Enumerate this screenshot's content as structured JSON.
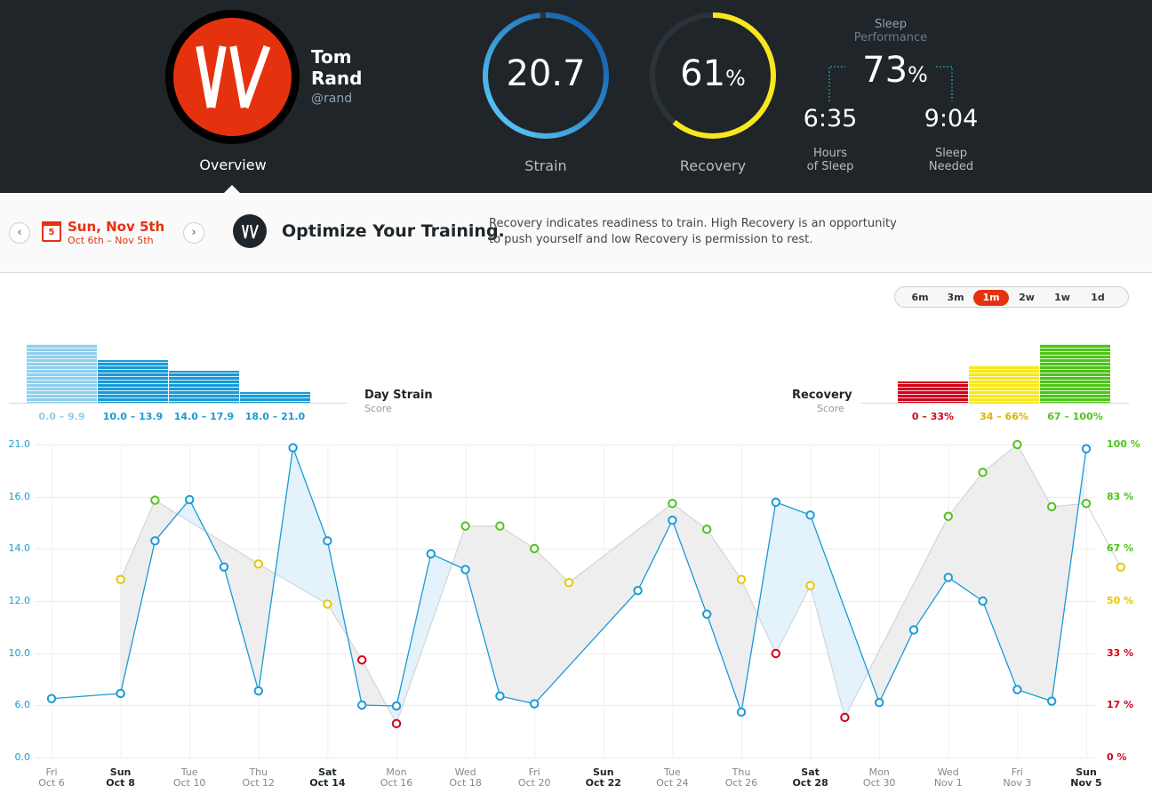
{
  "header": {
    "user": {
      "first_name": "Tom",
      "last_name": "Rand",
      "handle": "@rand"
    },
    "nav_label": "Overview",
    "strain": {
      "value": "20.7",
      "label": "Strain",
      "max": 21.0,
      "fraction": 0.985
    },
    "recovery": {
      "value": "61",
      "unit": "%",
      "label": "Recovery",
      "fraction": 0.61
    },
    "sleep": {
      "title_1": "Sleep",
      "title_2": "Performance",
      "value": "73",
      "unit": "%",
      "hours_of_sleep": "6:35",
      "hours_label_1": "Hours",
      "hours_label_2": "of Sleep",
      "needed": "9:04",
      "needed_label_1": "Sleep",
      "needed_label_2": "Needed"
    }
  },
  "subbar": {
    "prev_icon": "chevron-left-icon",
    "next_icon": "chevron-right-icon",
    "calendar_day": "5",
    "date": "Sun, Nov 5th",
    "range": "Oct 6th – Nov 5th",
    "title": "Optimize Your Training.",
    "description": "Recovery indicates readiness to train. High Recovery is an opportunity to push yourself and low Recovery is permission to rest."
  },
  "range_selector": {
    "options": [
      "6m",
      "3m",
      "1m",
      "2w",
      "1w",
      "1d"
    ],
    "selected": "1m"
  },
  "histograms": {
    "strain": {
      "title": "Day Strain",
      "subtitle": "Score",
      "bins": [
        {
          "label": "0.0 – 9.9",
          "value": 11,
          "color": "#8fd0ef"
        },
        {
          "label": "10.0 – 13.9",
          "value": 8,
          "color": "#1a9ad6"
        },
        {
          "label": "14.0 – 17.9",
          "value": 6,
          "color": "#1a9ad6"
        },
        {
          "label": "18.0 – 21.0",
          "value": 2,
          "color": "#1a9ad6"
        }
      ]
    },
    "recovery": {
      "title": "Recovery",
      "subtitle": "Score",
      "bins": [
        {
          "label": "0 – 33%",
          "value": 4,
          "color": "#d0021b"
        },
        {
          "label": "34 – 66%",
          "value": 7,
          "color": "#f8e71c"
        },
        {
          "label": "67 – 100%",
          "value": 11,
          "color": "#4ec31a"
        }
      ]
    }
  },
  "chart_data": {
    "type": "line",
    "left_axis": {
      "label": "",
      "ticks": [
        "21.0",
        "16.0",
        "14.0",
        "12.0",
        "10.0",
        "6.0",
        "0.0"
      ],
      "color": "#1a9ad6"
    },
    "right_axis": {
      "label": "",
      "ticks": [
        {
          "label": "100 %",
          "color": "#4ec31a"
        },
        {
          "label": "83 %",
          "color": "#4ec31a"
        },
        {
          "label": "67 %",
          "color": "#4ec31a"
        },
        {
          "label": "50 %",
          "color": "#e5c800"
        },
        {
          "label": "33 %",
          "color": "#d0021b"
        },
        {
          "label": "17 %",
          "color": "#d0021b"
        },
        {
          "label": "0 %",
          "color": "#d0021b"
        }
      ]
    },
    "x_labels": [
      {
        "day": "Fri",
        "date": "Oct 6",
        "bold": false
      },
      {
        "day": "Sun",
        "date": "Oct 8",
        "bold": true
      },
      {
        "day": "Tue",
        "date": "Oct 10",
        "bold": false
      },
      {
        "day": "Thu",
        "date": "Oct 12",
        "bold": false
      },
      {
        "day": "Sat",
        "date": "Oct 14",
        "bold": true
      },
      {
        "day": "Mon",
        "date": "Oct 16",
        "bold": false
      },
      {
        "day": "Wed",
        "date": "Oct 18",
        "bold": false
      },
      {
        "day": "Fri",
        "date": "Oct 20",
        "bold": false
      },
      {
        "day": "Sun",
        "date": "Oct 22",
        "bold": true
      },
      {
        "day": "Tue",
        "date": "Oct 24",
        "bold": false
      },
      {
        "day": "Thu",
        "date": "Oct 26",
        "bold": false
      },
      {
        "day": "Sat",
        "date": "Oct 28",
        "bold": true
      },
      {
        "day": "Mon",
        "date": "Oct 30",
        "bold": false
      },
      {
        "day": "Wed",
        "date": "Nov 1",
        "bold": false
      },
      {
        "day": "Fri",
        "date": "Nov 3",
        "bold": false
      },
      {
        "day": "Sun",
        "date": "Nov 5",
        "bold": true
      }
    ],
    "series": [
      {
        "name": "Strain",
        "color": "#1a9ad6",
        "points": [
          [
            0,
            6.5
          ],
          [
            2,
            6.9
          ],
          [
            3,
            14.3
          ],
          [
            4,
            15.9
          ],
          [
            5,
            13.3
          ],
          [
            6,
            7.1
          ],
          [
            7,
            20.7
          ],
          [
            8,
            14.3
          ],
          [
            9,
            6.0
          ],
          [
            10,
            5.9
          ],
          [
            11,
            13.8
          ],
          [
            12,
            13.2
          ],
          [
            13,
            6.7
          ],
          [
            14,
            6.1
          ],
          [
            17,
            12.4
          ],
          [
            18,
            15.1
          ],
          [
            19,
            11.5
          ],
          [
            20,
            5.2
          ],
          [
            21,
            15.8
          ],
          [
            22,
            15.3
          ],
          [
            24,
            6.2
          ],
          [
            25,
            10.9
          ],
          [
            26,
            12.9
          ],
          [
            27,
            12.0
          ],
          [
            28,
            7.2
          ],
          [
            29,
            6.3
          ],
          [
            30,
            20.6
          ]
        ]
      },
      {
        "name": "Recovery",
        "points": [
          [
            2,
            57,
            "#e5c800"
          ],
          [
            3,
            82,
            "#4ec31a"
          ],
          [
            6,
            62,
            "#e5c800"
          ],
          [
            8,
            49,
            "#e5c800"
          ],
          [
            9,
            31,
            "#d0021b"
          ],
          [
            10,
            11,
            "#d0021b"
          ],
          [
            12,
            74,
            "#4ec31a"
          ],
          [
            13,
            74,
            "#4ec31a"
          ],
          [
            14,
            67,
            "#4ec31a"
          ],
          [
            15,
            56,
            "#e5c800"
          ],
          [
            18,
            81,
            "#4ec31a"
          ],
          [
            19,
            73,
            "#4ec31a"
          ],
          [
            20,
            57,
            "#e5c800"
          ],
          [
            21,
            33,
            "#d0021b"
          ],
          [
            22,
            55,
            "#e5c800"
          ],
          [
            23,
            13,
            "#d0021b"
          ],
          [
            26,
            77,
            "#4ec31a"
          ],
          [
            27,
            91,
            "#4ec31a"
          ],
          [
            28,
            100,
            "#4ec31a"
          ],
          [
            29,
            80,
            "#4ec31a"
          ],
          [
            30,
            81,
            "#4ec31a"
          ],
          [
            31,
            61,
            "#e5c800"
          ]
        ]
      }
    ]
  }
}
